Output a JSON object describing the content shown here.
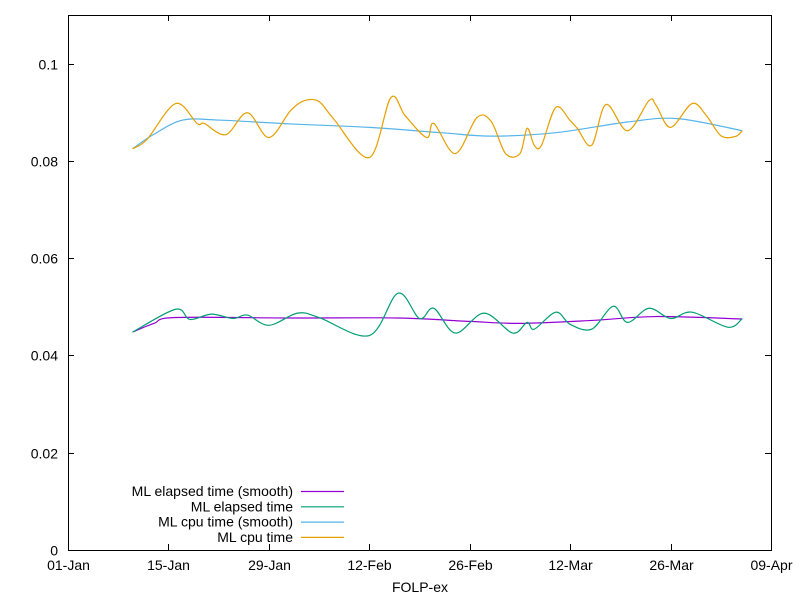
{
  "chart_data": {
    "type": "line",
    "title": "",
    "xlabel": "FOLP-ex",
    "ylabel": "",
    "xlim": [
      "01-Jan",
      "09-Apr"
    ],
    "ylim": [
      0,
      0.11
    ],
    "x_ticks": [
      "01-Jan",
      "15-Jan",
      "29-Jan",
      "12-Feb",
      "26-Feb",
      "12-Mar",
      "26-Mar",
      "09-Apr"
    ],
    "y_ticks": [
      "0",
      "0.02",
      "0.04",
      "0.06",
      "0.08",
      "0.1"
    ],
    "y_tick_values": [
      0,
      0.02,
      0.04,
      0.06,
      0.08,
      0.1
    ],
    "grid": false,
    "legend_position": "bottom-left",
    "series": [
      {
        "name": "ML elapsed time (smooth)",
        "color": "#9400d3",
        "x": [
          "10-Jan",
          "13-Jan",
          "16-Jan",
          "01-Feb",
          "16-Feb",
          "26-Feb",
          "05-Mar",
          "15-Mar",
          "24-Mar",
          "05-Apr"
        ],
        "y": [
          0.0448,
          0.0466,
          0.0478,
          0.0477,
          0.0477,
          0.047,
          0.0466,
          0.0472,
          0.048,
          0.0475
        ]
      },
      {
        "name": "ML elapsed time",
        "color": "#009e73",
        "x": [
          "10-Jan",
          "16-Jan",
          "18-Jan",
          "21-Jan",
          "24-Jan",
          "26-Jan",
          "29-Jan",
          "02-Feb",
          "05-Feb",
          "12-Feb",
          "16-Feb",
          "19-Feb",
          "21-Feb",
          "24-Feb",
          "28-Feb",
          "04-Mar",
          "06-Mar",
          "07-Mar",
          "10-Mar",
          "12-Mar",
          "15-Mar",
          "18-Mar",
          "20-Mar",
          "23-Mar",
          "26-Mar",
          "29-Mar",
          "03-Apr",
          "05-Apr"
        ],
        "y": [
          0.0448,
          0.0495,
          0.0474,
          0.0485,
          0.0476,
          0.0483,
          0.0462,
          0.0487,
          0.0478,
          0.0441,
          0.0528,
          0.0476,
          0.0497,
          0.0446,
          0.0487,
          0.0446,
          0.0468,
          0.0454,
          0.0489,
          0.0464,
          0.0454,
          0.0501,
          0.0468,
          0.0497,
          0.0476,
          0.0489,
          0.0458,
          0.0476
        ]
      },
      {
        "name": "ML cpu time (smooth)",
        "color": "#56b4e9",
        "x": [
          "10-Jan",
          "13-Jan",
          "17-Jan",
          "22-Jan",
          "01-Feb",
          "12-Feb",
          "22-Feb",
          "01-Mar",
          "10-Mar",
          "20-Mar",
          "27-Mar",
          "05-Apr"
        ],
        "y": [
          0.0825,
          0.0855,
          0.0884,
          0.0884,
          0.0876,
          0.0869,
          0.0858,
          0.0851,
          0.0858,
          0.088,
          0.0887,
          0.0862
        ]
      },
      {
        "name": "ML cpu time",
        "color": "#e69f00",
        "x": [
          "10-Jan",
          "12-Jan",
          "16-Jan",
          "19-Jan",
          "20-Jan",
          "23-Jan",
          "26-Jan",
          "29-Jan",
          "01-Feb",
          "03-Feb",
          "05-Feb",
          "07-Feb",
          "12-Feb",
          "15-Feb",
          "17-Feb",
          "20-Feb",
          "21-Feb",
          "24-Feb",
          "27-Feb",
          "01-Mar",
          "03-Mar",
          "05-Mar",
          "06-Mar",
          "07-Mar",
          "08-Mar",
          "10-Mar",
          "12-Mar",
          "13-Mar",
          "15-Mar",
          "17-Mar",
          "20-Mar",
          "23-Mar",
          "24-Mar",
          "26-Mar",
          "29-Mar",
          "31-Mar",
          "02-Apr",
          "04-Apr",
          "05-Apr"
        ],
        "y": [
          0.0825,
          0.0844,
          0.0918,
          0.0877,
          0.0877,
          0.0854,
          0.0899,
          0.0848,
          0.0903,
          0.0924,
          0.0922,
          0.0887,
          0.0807,
          0.093,
          0.0893,
          0.0848,
          0.0877,
          0.0815,
          0.0889,
          0.0881,
          0.0815,
          0.0815,
          0.0867,
          0.0832,
          0.0832,
          0.091,
          0.0883,
          0.0867,
          0.0832,
          0.0916,
          0.0862,
          0.0924,
          0.0914,
          0.0869,
          0.0918,
          0.0893,
          0.0852,
          0.085,
          0.0862
        ]
      }
    ]
  }
}
